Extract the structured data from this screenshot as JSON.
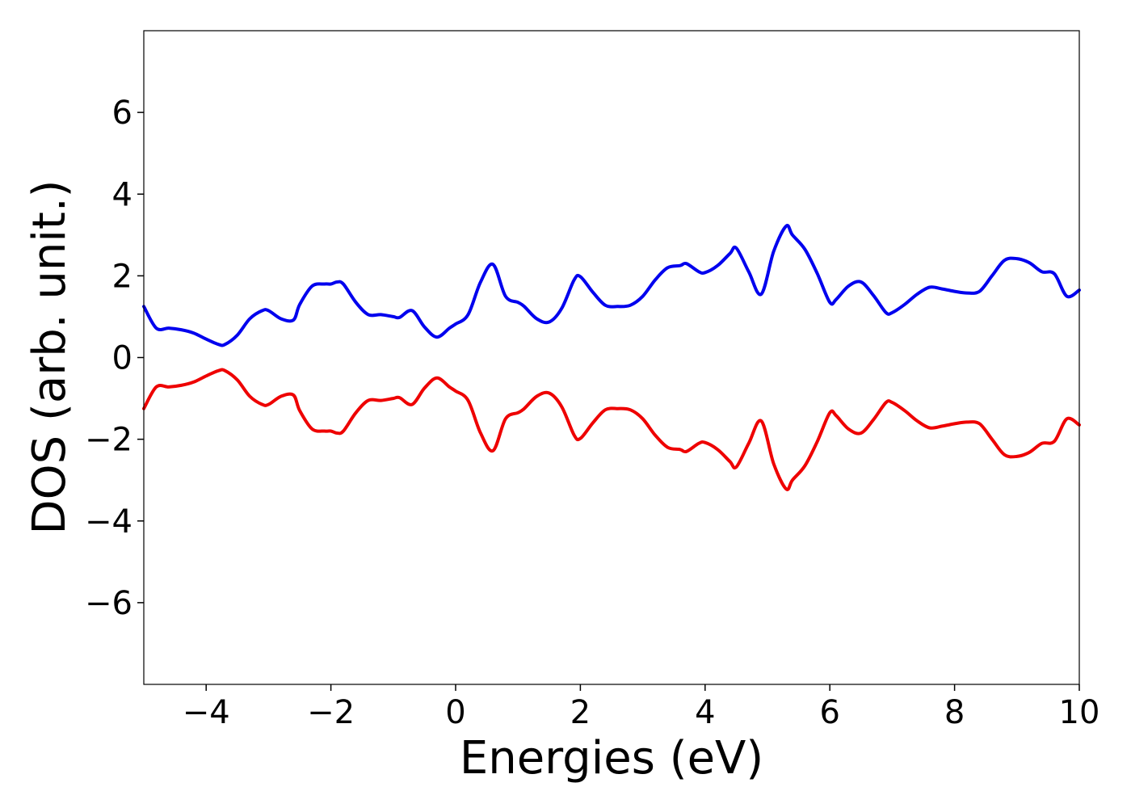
{
  "chart_data": {
    "type": "line",
    "title": "",
    "xlabel": "Energies (eV)",
    "ylabel": "DOS (arb. unit.)",
    "xlim": [
      -5,
      10
    ],
    "ylim": [
      -8,
      8
    ],
    "xticks": [
      -4,
      -2,
      0,
      2,
      4,
      6,
      8,
      10
    ],
    "xtick_labels": [
      "−4",
      "−2",
      "0",
      "2",
      "4",
      "6",
      "8",
      "10"
    ],
    "yticks": [
      -6,
      -4,
      -2,
      0,
      2,
      4,
      6
    ],
    "ytick_labels": [
      "−6",
      "−4",
      "−2",
      "0",
      "2",
      "4",
      "6"
    ],
    "grid": false,
    "legend": "none",
    "x": [
      -5.0,
      -4.8,
      -4.6,
      -4.4,
      -4.2,
      -4.0,
      -3.8,
      -3.7,
      -3.5,
      -3.3,
      -3.1,
      -3.0,
      -2.8,
      -2.6,
      -2.5,
      -2.3,
      -2.1,
      -2.0,
      -1.9,
      -1.8,
      -1.6,
      -1.4,
      -1.2,
      -1.0,
      -0.9,
      -0.7,
      -0.5,
      -0.3,
      -0.1,
      0.0,
      0.2,
      0.4,
      0.6,
      0.8,
      1.0,
      1.1,
      1.3,
      1.5,
      1.7,
      1.9,
      2.0,
      2.2,
      2.4,
      2.6,
      2.8,
      3.0,
      3.2,
      3.4,
      3.6,
      3.7,
      3.9,
      4.0,
      4.2,
      4.4,
      4.5,
      4.7,
      4.9,
      5.1,
      5.3,
      5.4,
      5.6,
      5.8,
      6.0,
      6.1,
      6.3,
      6.5,
      6.7,
      6.9,
      7.0,
      7.2,
      7.4,
      7.6,
      7.8,
      8.0,
      8.2,
      8.4,
      8.6,
      8.8,
      9.0,
      9.2,
      9.4,
      9.6,
      9.8,
      10.0
    ],
    "series": [
      {
        "color": "#0000ee",
        "values": [
          1.25,
          0.72,
          0.72,
          0.68,
          0.6,
          0.45,
          0.32,
          0.32,
          0.55,
          0.95,
          1.15,
          1.15,
          0.95,
          0.92,
          1.3,
          1.75,
          1.8,
          1.8,
          1.85,
          1.8,
          1.35,
          1.05,
          1.05,
          1.0,
          0.98,
          1.15,
          0.75,
          0.5,
          0.72,
          0.82,
          1.05,
          1.85,
          2.28,
          1.5,
          1.35,
          1.25,
          0.95,
          0.87,
          1.2,
          1.9,
          1.98,
          1.6,
          1.28,
          1.25,
          1.28,
          1.5,
          1.9,
          2.2,
          2.25,
          2.3,
          2.1,
          2.08,
          2.25,
          2.55,
          2.68,
          2.1,
          1.55,
          2.6,
          3.22,
          3.0,
          2.65,
          2.05,
          1.35,
          1.42,
          1.75,
          1.85,
          1.52,
          1.1,
          1.1,
          1.3,
          1.55,
          1.72,
          1.68,
          1.62,
          1.58,
          1.62,
          2.0,
          2.38,
          2.42,
          2.32,
          2.1,
          2.05,
          1.5,
          1.65
        ]
      },
      {
        "color": "#ee0000",
        "values": [
          -1.25,
          -0.72,
          -0.72,
          -0.68,
          -0.6,
          -0.45,
          -0.32,
          -0.32,
          -0.55,
          -0.95,
          -1.15,
          -1.15,
          -0.95,
          -0.92,
          -1.3,
          -1.75,
          -1.8,
          -1.8,
          -1.85,
          -1.8,
          -1.35,
          -1.05,
          -1.05,
          -1.0,
          -0.98,
          -1.15,
          -0.75,
          -0.5,
          -0.72,
          -0.82,
          -1.05,
          -1.85,
          -2.28,
          -1.5,
          -1.35,
          -1.25,
          -0.95,
          -0.87,
          -1.2,
          -1.9,
          -1.98,
          -1.6,
          -1.28,
          -1.25,
          -1.28,
          -1.5,
          -1.9,
          -2.2,
          -2.25,
          -2.3,
          -2.1,
          -2.08,
          -2.25,
          -2.55,
          -2.68,
          -2.1,
          -1.55,
          -2.6,
          -3.22,
          -3.0,
          -2.65,
          -2.05,
          -1.35,
          -1.42,
          -1.75,
          -1.85,
          -1.52,
          -1.1,
          -1.1,
          -1.3,
          -1.55,
          -1.72,
          -1.68,
          -1.62,
          -1.58,
          -1.62,
          -2.0,
          -2.38,
          -2.42,
          -2.32,
          -2.1,
          -2.05,
          -1.5,
          -1.65
        ]
      }
    ]
  }
}
